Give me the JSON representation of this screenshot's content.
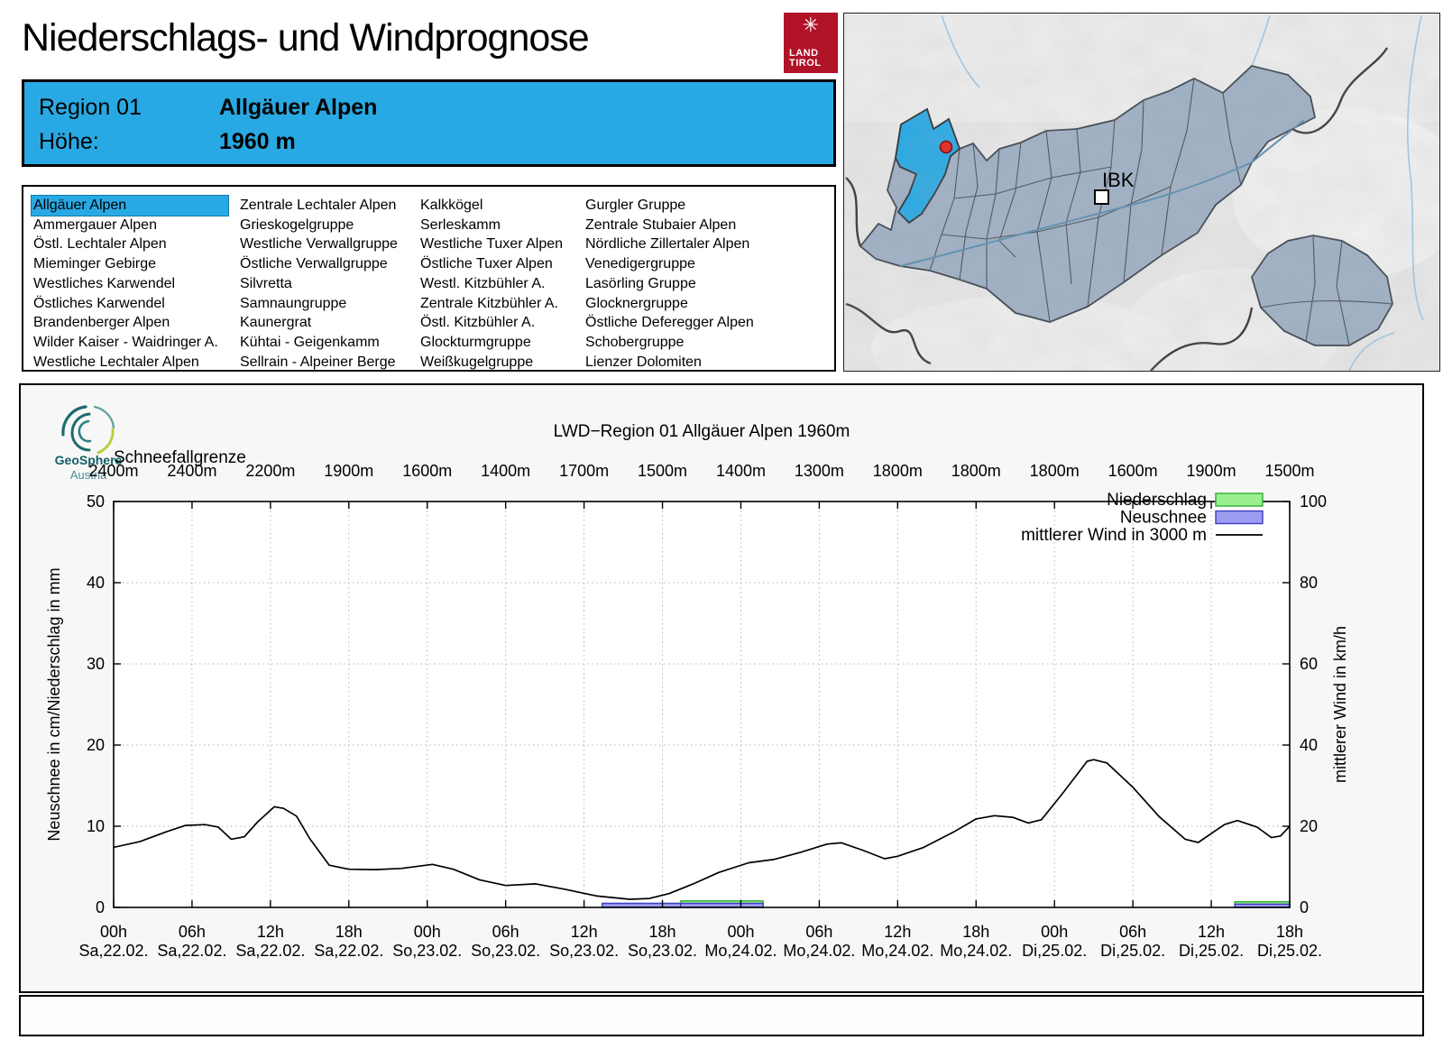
{
  "header": {
    "title": "Niederschlags- und Windprognose",
    "logo_line1": "LAND",
    "logo_line2": "TIROL",
    "region_label": "Region 01",
    "region_name": "Allgäuer Alpen",
    "elevation_label": "Höhe:",
    "elevation_value": "1960 m"
  },
  "region_list": {
    "selected": "Allgäuer Alpen",
    "columns": [
      [
        "Allgäuer Alpen",
        "Ammergauer Alpen",
        "Östl. Lechtaler Alpen",
        "Mieminger Gebirge",
        "Westliches Karwendel",
        "Östliches Karwendel",
        "Brandenberger Alpen",
        "Wilder Kaiser - Waidringer A.",
        "Westliche Lechtaler Alpen"
      ],
      [
        "Zentrale Lechtaler Alpen",
        "Grieskogelgruppe",
        "Westliche Verwallgruppe",
        "Östliche Verwallgruppe",
        "Silvretta",
        "Samnaungruppe",
        "Kaunergrat",
        "Kühtai - Geigenkamm",
        "Sellrain - Alpeiner Berge"
      ],
      [
        "Kalkkögel",
        "Serleskamm",
        "Westliche Tuxer Alpen",
        "Östliche Tuxer Alpen",
        "Westl. Kitzbühler A.",
        "Zentrale Kitzbühler A.",
        "Östl. Kitzbühler A.",
        "Glockturmgruppe",
        "Weißkugelgruppe"
      ],
      [
        "Gurgler Gruppe",
        "Zentrale Stubaier Alpen",
        "Nördliche Zillertaler Alpen",
        "Venedigergruppe",
        "Lasörling Gruppe",
        "Glocknergruppe",
        "Östliche Deferegger Alpen",
        "Schobergruppe",
        "Lienzer Dolomiten"
      ]
    ]
  },
  "map": {
    "city_label": "IBK",
    "highlight_color": "#29a9e3",
    "region_fill": "#9fb0c4",
    "marker_color": "#e03131"
  },
  "chart_data": {
    "type": "line+bar",
    "title": "LWD−Region 01 Allgäuer Alpen 1960m",
    "brand": "GeoSphere",
    "brand_sub": "Austria",
    "snowline_label": "Schneefallgrenze",
    "snowline_values": [
      "2400m",
      "2400m",
      "2200m",
      "1900m",
      "1600m",
      "1400m",
      "1700m",
      "1500m",
      "1400m",
      "1300m",
      "1800m",
      "1800m",
      "1800m",
      "1600m",
      "1900m",
      "1500m"
    ],
    "x_tick_hours": [
      "00h",
      "06h",
      "12h",
      "18h",
      "00h",
      "06h",
      "12h",
      "18h",
      "00h",
      "06h",
      "12h",
      "18h",
      "00h",
      "06h",
      "12h",
      "18h"
    ],
    "x_tick_dates": [
      "Sa,22.02.",
      "Sa,22.02.",
      "Sa,22.02.",
      "Sa,22.02.",
      "So,23.02.",
      "So,23.02.",
      "So,23.02.",
      "So,23.02.",
      "Mo,24.02.",
      "Mo,24.02.",
      "Mo,24.02.",
      "Mo,24.02.",
      "Di,25.02.",
      "Di,25.02.",
      "Di,25.02.",
      "Di,25.02."
    ],
    "ylabel_left": "Neuschnee in cm/Niederschlag in mm",
    "ylabel_right": "mittlerer Wind in km/h",
    "ylim_left": [
      0,
      50
    ],
    "ylim_right": [
      0,
      100
    ],
    "yticks_left": [
      0,
      10,
      20,
      30,
      40,
      50
    ],
    "yticks_right": [
      0,
      20,
      40,
      60,
      80,
      100
    ],
    "x_range_hours": [
      0,
      90
    ],
    "grid": "dotted",
    "legend_position": "top-right-inside",
    "legend": [
      {
        "label": "Niederschlag",
        "type": "box",
        "fill": "#9bef90",
        "stroke": "#2fae2f"
      },
      {
        "label": "Neuschnee",
        "type": "box",
        "fill": "#9c9cf0",
        "stroke": "#3c3cc8"
      },
      {
        "label": "mittlerer Wind in 3000 m",
        "type": "line",
        "stroke": "#000000"
      }
    ],
    "wind_series": {
      "name": "mittlerer Wind in 3000 m",
      "units": "km/h",
      "points": [
        [
          0,
          14.8
        ],
        [
          2,
          16.2
        ],
        [
          4,
          18.6
        ],
        [
          5.5,
          20.2
        ],
        [
          7,
          20.4
        ],
        [
          8,
          19.8
        ],
        [
          9,
          16.8
        ],
        [
          10,
          17.4
        ],
        [
          11,
          21.0
        ],
        [
          12.3,
          24.8
        ],
        [
          13,
          24.4
        ],
        [
          14,
          22.5
        ],
        [
          15,
          17.0
        ],
        [
          16.5,
          10.4
        ],
        [
          18,
          9.4
        ],
        [
          20,
          9.3
        ],
        [
          22,
          9.6
        ],
        [
          24.4,
          10.6
        ],
        [
          26,
          9.4
        ],
        [
          28,
          6.8
        ],
        [
          30,
          5.4
        ],
        [
          32.3,
          5.8
        ],
        [
          34.5,
          4.5
        ],
        [
          37,
          2.8
        ],
        [
          39.5,
          2.0
        ],
        [
          41,
          2.2
        ],
        [
          42.5,
          3.4
        ],
        [
          44.5,
          6.0
        ],
        [
          46.3,
          8.6
        ],
        [
          48.6,
          11.0
        ],
        [
          50.5,
          11.8
        ],
        [
          52.6,
          13.6
        ],
        [
          54.6,
          15.6
        ],
        [
          55.7,
          15.9
        ],
        [
          57.4,
          14.0
        ],
        [
          59,
          12.0
        ],
        [
          60,
          12.6
        ],
        [
          62,
          14.8
        ],
        [
          64.3,
          18.6
        ],
        [
          66,
          21.8
        ],
        [
          67.4,
          22.6
        ],
        [
          68.8,
          22.2
        ],
        [
          70,
          20.8
        ],
        [
          71,
          21.6
        ],
        [
          72.6,
          28.0
        ],
        [
          74.5,
          36.0
        ],
        [
          75,
          36.4
        ],
        [
          76,
          35.6
        ],
        [
          78,
          29.6
        ],
        [
          80,
          22.4
        ],
        [
          82,
          16.8
        ],
        [
          83,
          16.0
        ],
        [
          85,
          20.4
        ],
        [
          86,
          21.4
        ],
        [
          87.5,
          19.8
        ],
        [
          88.6,
          17.2
        ],
        [
          89.3,
          17.6
        ],
        [
          90,
          20.0
        ]
      ]
    },
    "bars": [
      {
        "start_h": 37.4,
        "end_h": 43.4,
        "niederschlag_mm": 0.5,
        "neuschnee_cm": 0.5
      },
      {
        "start_h": 43.4,
        "end_h": 49.7,
        "niederschlag_mm": 0.8,
        "neuschnee_cm": 0.5
      },
      {
        "start_h": 85.8,
        "end_h": 90.0,
        "niederschlag_mm": 0.7,
        "neuschnee_cm": 0.4
      }
    ]
  }
}
